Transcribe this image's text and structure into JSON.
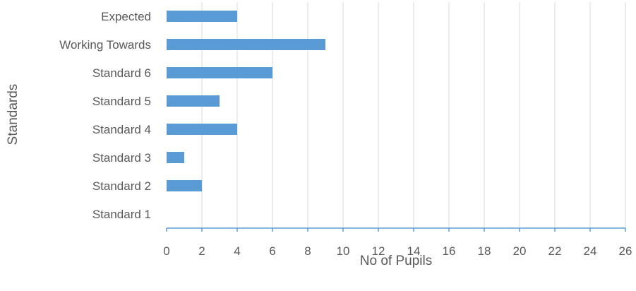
{
  "chart_data": {
    "type": "bar",
    "orientation": "horizontal",
    "categories": [
      "Standard 1",
      "Standard 2",
      "Standard 3",
      "Standard 4",
      "Standard 5",
      "Standard 6",
      "Working Towards",
      "Expected"
    ],
    "values": [
      0,
      2,
      1,
      4,
      3,
      6,
      9,
      4
    ],
    "xlabel": "No of Pupils",
    "ylabel": "Standards",
    "xlim": [
      0,
      26
    ],
    "xticks": [
      0,
      2,
      4,
      6,
      8,
      10,
      12,
      14,
      16,
      18,
      20,
      22,
      24,
      26
    ],
    "grid": "vertical",
    "bar_color": "#5B9BD5",
    "grid_color": "#D9D9D9",
    "axis_color": "#5B9BD5"
  }
}
